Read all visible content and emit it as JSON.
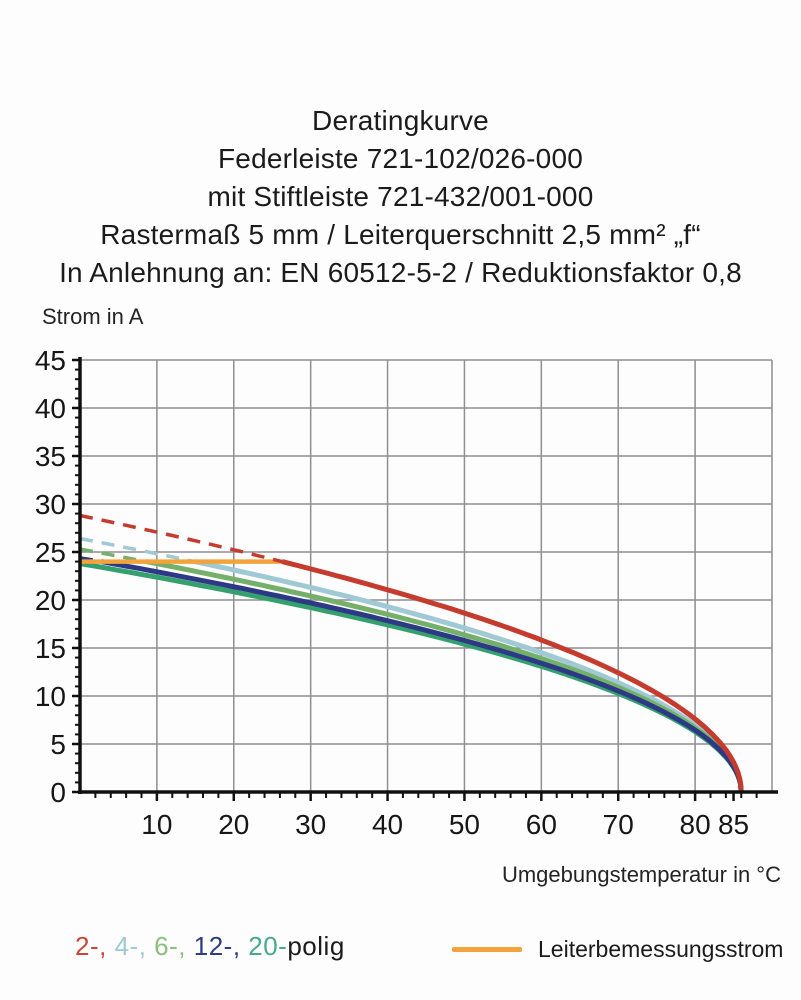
{
  "title": {
    "lines": [
      "Deratingkurve",
      "Federleiste 721-102/026-000",
      "mit Stiftleiste 721-432/001-000",
      "Rastermaß 5 mm / Leiterquerschnitt 2,5 mm² „f“",
      "In Anlehnung an: EN 60512-5-2 / Reduktionsfaktor 0,8"
    ]
  },
  "chart_data": {
    "type": "line",
    "title": "Deratingkurve",
    "xlabel": "Umgebungstemperatur in °C",
    "ylabel": "Strom in A",
    "xlim": [
      0,
      90
    ],
    "ylim": [
      0,
      45
    ],
    "grid": true,
    "x_major_ticks": [
      10,
      20,
      30,
      40,
      50,
      60,
      70,
      80,
      85
    ],
    "x_minor_step": 2,
    "y_major_ticks": [
      0,
      5,
      10,
      15,
      20,
      25,
      30,
      35,
      40,
      45
    ],
    "y_minor_step": 1,
    "x_grid_step": 10,
    "y_grid_step": 5,
    "axis_color": "#111111",
    "grid_color": "#8f8f8f",
    "model": {
      "formula": "I(T) = I0 * sqrt(1 - T / t_end)",
      "t_end": 86
    },
    "rated_current": {
      "label": "Leiterbemessungsstrom",
      "value_A": 24,
      "t_from": 0,
      "t_to": 26.3,
      "color": "#F2A33C"
    },
    "series": [
      {
        "name": "2-polig",
        "color": "#C53B2E",
        "i0": 28.8,
        "dashed_until_temp": 26.3,
        "points_T": [
          0,
          10,
          20,
          30,
          40,
          50,
          60,
          70,
          80,
          85,
          86
        ],
        "points_I": [
          28.8,
          27.1,
          25.2,
          23.2,
          21.1,
          18.6,
          15.8,
          12.4,
          7.6,
          3.1,
          0
        ]
      },
      {
        "name": "4-polig",
        "color": "#9FC9D4",
        "i0": 26.4,
        "dashed_until_temp": 14.9,
        "points_T": [
          0,
          10,
          20,
          30,
          40,
          50,
          60,
          70,
          80,
          85,
          86
        ],
        "points_I": [
          26.4,
          24.8,
          23.1,
          21.3,
          19.3,
          17.1,
          14.5,
          11.4,
          7.0,
          2.9,
          0
        ]
      },
      {
        "name": "6-polig",
        "color": "#74B06A",
        "i0": 25.3,
        "dashed_until_temp": 8.6,
        "points_T": [
          0,
          10,
          20,
          30,
          40,
          50,
          60,
          70,
          80,
          85,
          86
        ],
        "points_I": [
          25.3,
          23.8,
          22.2,
          20.4,
          18.5,
          16.4,
          13.9,
          10.9,
          6.7,
          2.7,
          0
        ]
      },
      {
        "name": "12-polig",
        "color": "#2C3A86",
        "i0": 24.4,
        "dashed_until_temp": 2.8,
        "points_T": [
          0,
          10,
          20,
          30,
          40,
          50,
          60,
          70,
          80,
          85,
          86
        ],
        "points_I": [
          24.4,
          22.9,
          21.4,
          19.7,
          17.9,
          15.8,
          13.4,
          10.5,
          6.5,
          2.6,
          0
        ]
      },
      {
        "name": "20-polig",
        "color": "#35A06E",
        "i0": 23.8,
        "dashed_until_temp": 0,
        "points_T": [
          0,
          10,
          20,
          30,
          40,
          50,
          60,
          70,
          80,
          85,
          86
        ],
        "points_I": [
          23.8,
          22.4,
          20.9,
          19.2,
          17.4,
          15.4,
          13.1,
          10.3,
          6.3,
          2.6,
          0
        ]
      }
    ]
  },
  "labels": {
    "ylabel": "Strom in A",
    "xlabel": "Umgebungstemperatur in °C"
  },
  "legend": {
    "poles": [
      {
        "label": "2-",
        "color": "#C8473A"
      },
      {
        "label": "4-",
        "color": "#9FC9D4"
      },
      {
        "label": "6-",
        "color": "#8CBF7F"
      },
      {
        "label": "12-",
        "color": "#2F3C85"
      },
      {
        "label": "20-",
        "color": "#46A98E"
      }
    ],
    "poles_suffix": "polig",
    "rated_label": "Leiterbemessungsstrom",
    "rated_color": "#F2A33C"
  }
}
